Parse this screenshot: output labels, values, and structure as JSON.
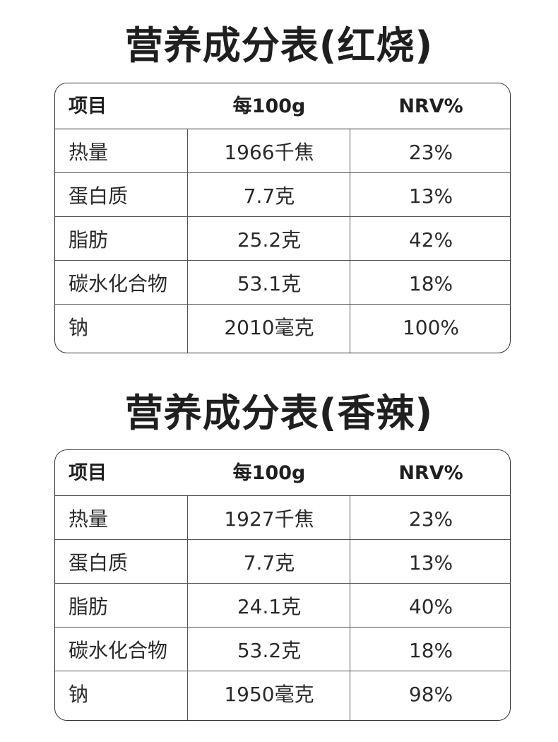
{
  "tables": [
    {
      "title": "营养成分表(红烧)",
      "headers": [
        "项目",
        "每100g",
        "NRV%"
      ],
      "rows": [
        {
          "item": "热量",
          "per100g": "1966千焦",
          "nrv": "23%"
        },
        {
          "item": "蛋白质",
          "per100g": "7.7克",
          "nrv": "13%"
        },
        {
          "item": "脂肪",
          "per100g": "25.2克",
          "nrv": "42%"
        },
        {
          "item": "碳水化合物",
          "per100g": "53.1克",
          "nrv": "18%"
        },
        {
          "item": "钠",
          "per100g": "2010毫克",
          "nrv": "100%"
        }
      ]
    },
    {
      "title": "营养成分表(香辣)",
      "headers": [
        "项目",
        "每100g",
        "NRV%"
      ],
      "rows": [
        {
          "item": "热量",
          "per100g": "1927千焦",
          "nrv": "23%"
        },
        {
          "item": "蛋白质",
          "per100g": "7.7克",
          "nrv": "13%"
        },
        {
          "item": "脂肪",
          "per100g": "24.1克",
          "nrv": "40%"
        },
        {
          "item": "碳水化合物",
          "per100g": "53.2克",
          "nrv": "18%"
        },
        {
          "item": "钠",
          "per100g": "1950毫克",
          "nrv": "98%"
        }
      ]
    }
  ],
  "colors": {
    "title": "#1f1f1f",
    "text": "#2a2a2a",
    "border": "#333333"
  }
}
